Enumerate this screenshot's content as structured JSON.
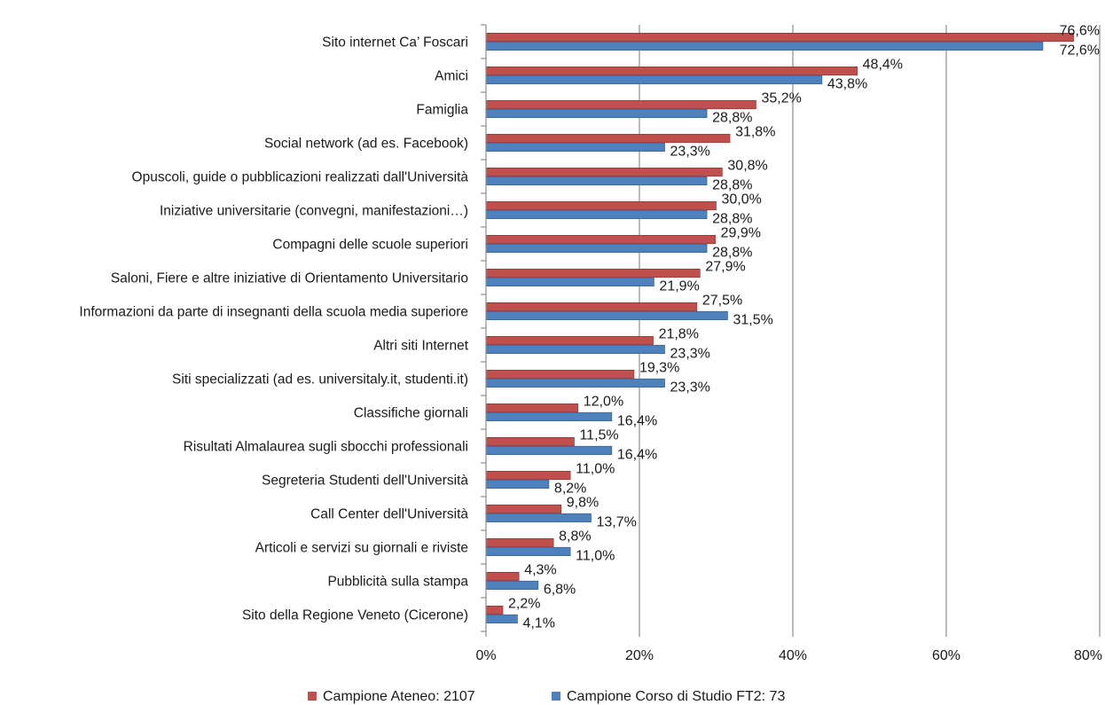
{
  "chart_data": {
    "type": "bar",
    "orientation": "horizontal",
    "categories": [
      "Sito internet Ca’ Foscari",
      "Amici",
      "Famiglia",
      "Social network (ad es. Facebook)",
      "Opuscoli, guide o pubblicazioni realizzati dall'Università",
      "Iniziative universitarie (convegni, manifestazioni…)",
      "Compagni delle scuole superiori",
      "Saloni, Fiere e altre iniziative di Orientamento Universitario",
      "Informazioni da parte di insegnanti della scuola media superiore",
      "Altri siti Internet",
      "Siti specializzati (ad es. universitaly.it, studenti.it)",
      "Classifiche giornali",
      "Risultati Almalaurea sugli sbocchi professionali",
      "Segreteria Studenti dell'Università",
      "Call Center dell'Università",
      "Articoli e servizi su giornali e riviste",
      "Pubblicità sulla stampa",
      "Sito della Regione Veneto (Cicerone)"
    ],
    "series": [
      {
        "name": "Campione Ateneo: 2107",
        "color": "#c0504d",
        "values": [
          76.6,
          48.4,
          35.2,
          31.8,
          30.8,
          30.0,
          29.9,
          27.9,
          27.5,
          21.8,
          19.3,
          12.0,
          11.5,
          11.0,
          9.8,
          8.8,
          4.3,
          2.2
        ],
        "labels": [
          "76,6%",
          "48,4%",
          "35,2%",
          "31,8%",
          "30,8%",
          "30,0%",
          "29,9%",
          "27,9%",
          "27,5%",
          "21,8%",
          "19,3%",
          "12,0%",
          "11,5%",
          "11,0%",
          "9,8%",
          "8,8%",
          "4,3%",
          "2,2%"
        ]
      },
      {
        "name": "Campione Corso di Studio FT2: 73",
        "color": "#4f81bd",
        "values": [
          72.6,
          43.8,
          28.8,
          23.3,
          28.8,
          28.8,
          28.8,
          21.9,
          31.5,
          23.3,
          23.3,
          16.4,
          16.4,
          8.2,
          13.7,
          11.0,
          6.8,
          4.1
        ],
        "labels": [
          "72,6%",
          "43,8%",
          "28,8%",
          "23,3%",
          "28,8%",
          "28,8%",
          "28,8%",
          "21,9%",
          "31,5%",
          "23,3%",
          "23,3%",
          "16,4%",
          "16,4%",
          "8,2%",
          "13,7%",
          "11,0%",
          "6,8%",
          "4,1%"
        ]
      }
    ],
    "xlim": [
      0,
      80
    ],
    "xticks": [
      0,
      20,
      40,
      60,
      80
    ],
    "xtick_labels": [
      "0%",
      "20%",
      "40%",
      "60%",
      "80%"
    ],
    "grid": "vertical",
    "legend_position": "bottom"
  }
}
